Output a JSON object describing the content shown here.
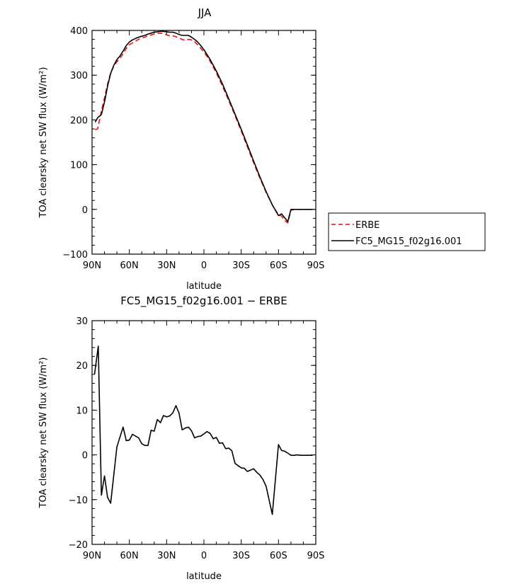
{
  "chart_data": [
    {
      "type": "line",
      "title": "JJA",
      "xlabel": "latitude",
      "ylabel": "TOA clearsky net SW flux (W/m²)",
      "xlim": [
        90,
        -90
      ],
      "ylim": [
        -100,
        400
      ],
      "xticks": [
        {
          "value": 90,
          "label": "90N"
        },
        {
          "value": 60,
          "label": "60N"
        },
        {
          "value": 30,
          "label": "30N"
        },
        {
          "value": 0,
          "label": "0"
        },
        {
          "value": -30,
          "label": "30S"
        },
        {
          "value": -60,
          "label": "60S"
        },
        {
          "value": -90,
          "label": "90S"
        }
      ],
      "yticks": [
        {
          "value": 400,
          "label": "400"
        },
        {
          "value": 300,
          "label": "300"
        },
        {
          "value": 200,
          "label": "200"
        },
        {
          "value": 100,
          "label": "100"
        },
        {
          "value": 0,
          "label": "0"
        },
        {
          "value": -100,
          "label": "−100"
        }
      ],
      "legend_position": "right",
      "series": [
        {
          "name": "ERBE",
          "color": "#e8140f",
          "dash": "dashed",
          "x": [
            87.5,
            85.5,
            82.5,
            80,
            77.5,
            75,
            72.5,
            70,
            67.5,
            65,
            62.5,
            60,
            57.5,
            55,
            52.5,
            50,
            47.5,
            45,
            42.5,
            40,
            37.5,
            35,
            32.5,
            30,
            27.5,
            25,
            22.5,
            20,
            17.5,
            15,
            12.5,
            10,
            7.5,
            5,
            2.5,
            0,
            -5,
            -10,
            -15,
            -20,
            -25,
            -30,
            -35,
            -40,
            -45,
            -50,
            -55,
            -60,
            -62.5,
            -65,
            -67.5,
            -70,
            -72.5,
            -75,
            -80,
            -85,
            -87.5
          ],
          "y": [
            178,
            180,
            220,
            250,
            280,
            305,
            320,
            330,
            338,
            348,
            360,
            368,
            372,
            376,
            380,
            383,
            385,
            388,
            390,
            392,
            393,
            394,
            393,
            390,
            388,
            388,
            386,
            383,
            380,
            378,
            380,
            379,
            375,
            368,
            360,
            352,
            331,
            305,
            275,
            243,
            210,
            175,
            140,
            104,
            70,
            38,
            10,
            -12,
            -15,
            -25,
            -30,
            -2,
            0,
            0,
            0,
            0,
            0
          ]
        },
        {
          "name": "FC5_MG15_f02g16.001",
          "color": "#000000",
          "dash": "solid",
          "x": [
            87.5,
            85.5,
            82.5,
            80,
            77.5,
            75,
            72.5,
            70,
            67.5,
            65,
            62.5,
            60,
            57.5,
            55,
            52.5,
            50,
            47.5,
            45,
            42.5,
            40,
            37.5,
            35,
            32.5,
            30,
            27.5,
            25,
            22.5,
            20,
            17.5,
            15,
            12.5,
            10,
            7.5,
            5,
            2.5,
            0,
            -5,
            -10,
            -15,
            -20,
            -25,
            -30,
            -35,
            -40,
            -45,
            -50,
            -55,
            -60,
            -62.5,
            -65,
            -67.5,
            -70,
            -72.5,
            -75,
            -80,
            -85,
            -87.5
          ],
          "y": [
            195,
            205,
            212,
            240,
            275,
            304,
            322,
            335,
            343,
            354,
            366,
            374,
            379,
            382,
            385,
            387,
            389,
            392,
            394,
            396,
            397,
            398,
            398,
            397,
            396,
            396,
            394,
            391,
            389,
            389,
            389,
            385,
            380,
            374,
            366,
            357,
            335,
            309,
            280,
            247,
            213,
            179,
            144,
            108,
            73,
            40,
            10,
            -14,
            -10,
            -19,
            -27,
            0,
            0,
            0,
            0,
            0,
            0
          ]
        }
      ]
    },
    {
      "type": "line",
      "title": "FC5_MG15_f02g16.001 − ERBE",
      "xlabel": "latitude",
      "ylabel": "TOA clearsky net SW flux (W/m²)",
      "xlim": [
        90,
        -90
      ],
      "ylim": [
        -20,
        30
      ],
      "xticks": [
        {
          "value": 90,
          "label": "90N"
        },
        {
          "value": 60,
          "label": "60N"
        },
        {
          "value": 30,
          "label": "30N"
        },
        {
          "value": 0,
          "label": "0"
        },
        {
          "value": -30,
          "label": "30S"
        },
        {
          "value": -60,
          "label": "60S"
        },
        {
          "value": -90,
          "label": "90S"
        }
      ],
      "yticks": [
        {
          "value": 30,
          "label": "30"
        },
        {
          "value": 20,
          "label": "20"
        },
        {
          "value": 10,
          "label": "10"
        },
        {
          "value": 0,
          "label": "0"
        },
        {
          "value": -10,
          "label": "−10"
        },
        {
          "value": -20,
          "label": "−20"
        }
      ],
      "series": [
        {
          "color": "#000000",
          "dash": "solid",
          "x": [
            88,
            85,
            82.5,
            80,
            77.5,
            75,
            72.5,
            70,
            67.5,
            65,
            62.5,
            60,
            57.5,
            55,
            52.5,
            50,
            47.5,
            45,
            42.5,
            40,
            37.5,
            35,
            32.5,
            30,
            27.5,
            25,
            22.5,
            20,
            17.5,
            15,
            12.5,
            10,
            7.5,
            5,
            2.5,
            0,
            -2.5,
            -5,
            -7.5,
            -10,
            -12.5,
            -15,
            -17.5,
            -20,
            -22.5,
            -25,
            -27.5,
            -30,
            -32.5,
            -35,
            -37.5,
            -40,
            -42.5,
            -45,
            -47.5,
            -50,
            -55,
            -60,
            -62.5,
            -65,
            -67.5,
            -70,
            -72.5,
            -75,
            -77.5,
            -80,
            -82.5,
            -85,
            -87.5
          ],
          "y": [
            18,
            24.3,
            -9,
            -4.7,
            -9.5,
            -10.8,
            -4.5,
            1.8,
            4,
            6.2,
            3.2,
            3.3,
            4.6,
            4.2,
            3.8,
            2.5,
            2.1,
            2.1,
            5.5,
            5.3,
            7.9,
            7.2,
            8.8,
            8.5,
            8.7,
            9.4,
            11,
            9.3,
            5.6,
            6,
            6.2,
            5.4,
            3.8,
            4.1,
            4.2,
            4.7,
            5.2,
            4.8,
            3.6,
            3.9,
            2.6,
            2.7,
            1.4,
            1.5,
            0.9,
            -1.9,
            -2.4,
            -2.9,
            -3,
            -3.7,
            -3.4,
            -3.1,
            -3.9,
            -4.5,
            -5.5,
            -7,
            -13.3,
            2.3,
            1,
            0.8,
            0.4,
            -0.1,
            -0.1,
            0,
            -0.1,
            -0.1,
            -0.1,
            -0.1,
            -0.1
          ]
        }
      ]
    }
  ],
  "legend": {
    "items": [
      {
        "label": "ERBE"
      },
      {
        "label": "FC5_MG15_f02g16.001"
      }
    ]
  }
}
